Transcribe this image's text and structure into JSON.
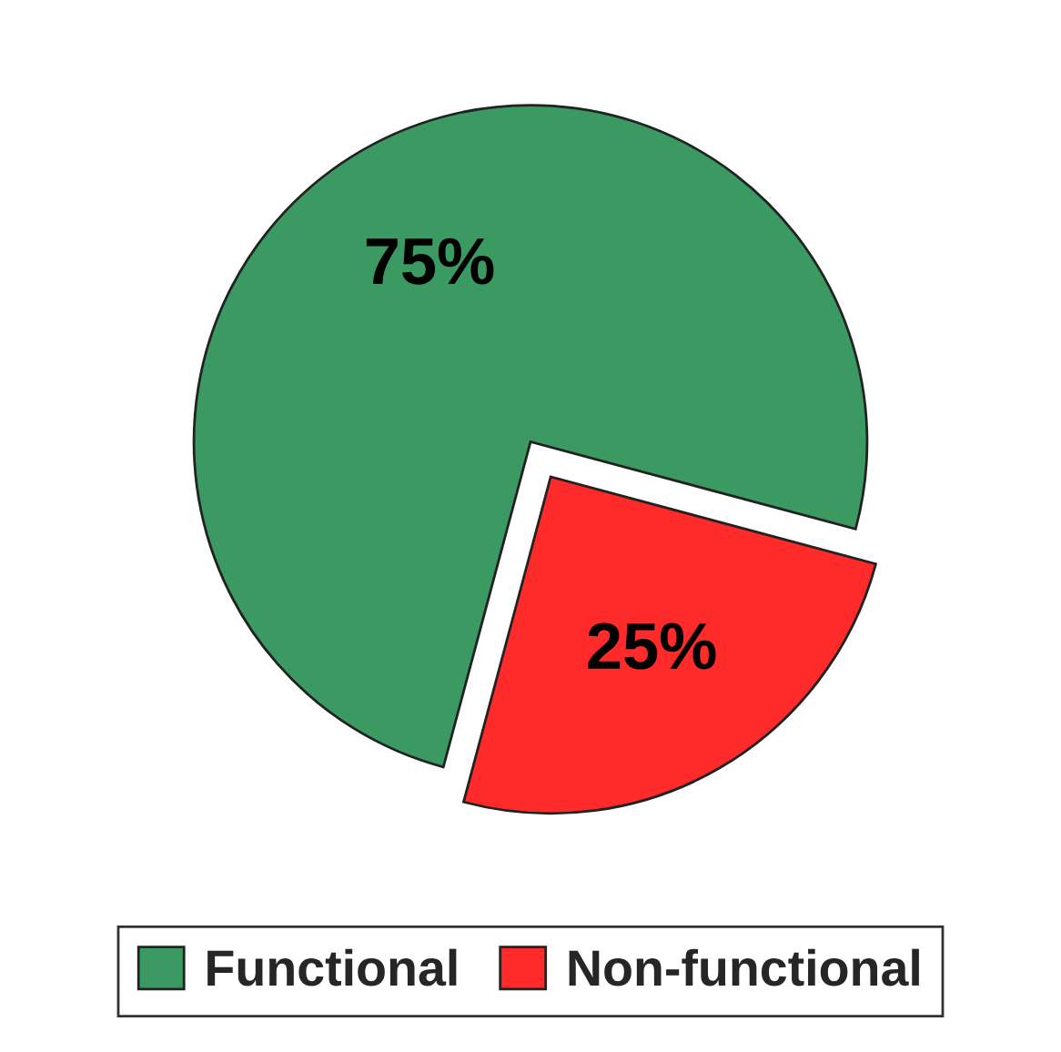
{
  "chart_data": {
    "type": "pie",
    "categories": [
      "Functional",
      "Non-functional"
    ],
    "values": [
      75,
      25
    ],
    "colors": [
      "#3a9a62",
      "#ff2a2a"
    ],
    "value_labels": [
      "75%",
      "25%"
    ],
    "legend": "bottom"
  }
}
